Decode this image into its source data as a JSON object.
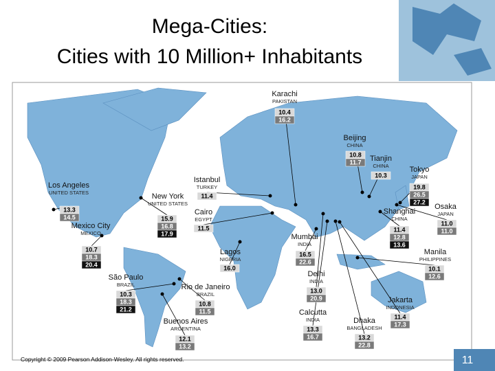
{
  "title": {
    "line1": "Mega-Cities:",
    "line2": "Cities with 10 Million+ Inhabitants"
  },
  "cities": [
    {
      "name": "Karachi",
      "country": "PAKISTAN",
      "values": [
        "10.4",
        "16.2"
      ]
    },
    {
      "name": "Beijing",
      "country": "CHINA",
      "values": [
        "10.8",
        "11.7"
      ]
    },
    {
      "name": "Tianjin",
      "country": "CHINA",
      "values": [
        "10.3"
      ]
    },
    {
      "name": "Tokyo",
      "country": "JAPAN",
      "values": [
        "19.8",
        "26.5",
        "27.2"
      ]
    },
    {
      "name": "Osaka",
      "country": "JAPAN",
      "values": [
        "11.0",
        "11.0"
      ]
    },
    {
      "name": "Shanghai",
      "country": "CHINA",
      "values": [
        "11.4",
        "12.8",
        "13.6"
      ]
    },
    {
      "name": "Manila",
      "country": "PHILIPPINES",
      "values": [
        "10.1",
        "12.6"
      ]
    },
    {
      "name": "Jakarta",
      "country": "INDONESIA",
      "values": [
        "11.4",
        "17.3"
      ]
    },
    {
      "name": "Dhaka",
      "country": "BANGLADESH",
      "values": [
        "13.2",
        "22.8"
      ]
    },
    {
      "name": "Calcutta",
      "country": "INDIA",
      "values": [
        "13.3",
        "16.7"
      ]
    },
    {
      "name": "Delhi",
      "country": "INDIA",
      "values": [
        "13.0",
        "20.9"
      ]
    },
    {
      "name": "Mumbai",
      "country": "INDIA",
      "values": [
        "16.5",
        "22.6"
      ]
    },
    {
      "name": "Lagos",
      "country": "NIGERIA",
      "values": [
        "16.0"
      ]
    },
    {
      "name": "Cairo",
      "country": "EGYPT",
      "values": [
        "11.5"
      ]
    },
    {
      "name": "Istanbul",
      "country": "TURKEY",
      "values": [
        "11.4"
      ]
    },
    {
      "name": "New York",
      "country": "UNITED STATES",
      "values": [
        "15.9",
        "16.8",
        "17.9"
      ]
    },
    {
      "name": "Los Angeles",
      "country": "UNITED STATES",
      "values": [
        "13.3",
        "14.5"
      ]
    },
    {
      "name": "Mexico City",
      "country": "MEXICO",
      "values": [
        "10.7",
        "18.3",
        "20.4"
      ]
    },
    {
      "name": "São Paulo",
      "country": "BRAZIL",
      "values": [
        "10.3",
        "18.3",
        "21.2"
      ]
    },
    {
      "name": "Rio de Janeiro",
      "country": "BRAZIL",
      "values": [
        "10.8",
        "11.5"
      ]
    },
    {
      "name": "Buenos Aires",
      "country": "ARGENTINA",
      "values": [
        "12.1",
        "13.2"
      ]
    }
  ],
  "footer": {
    "copyright": "Copyright © 2009 Pearson Addison-Wesley. All rights reserved.",
    "page": "11"
  }
}
